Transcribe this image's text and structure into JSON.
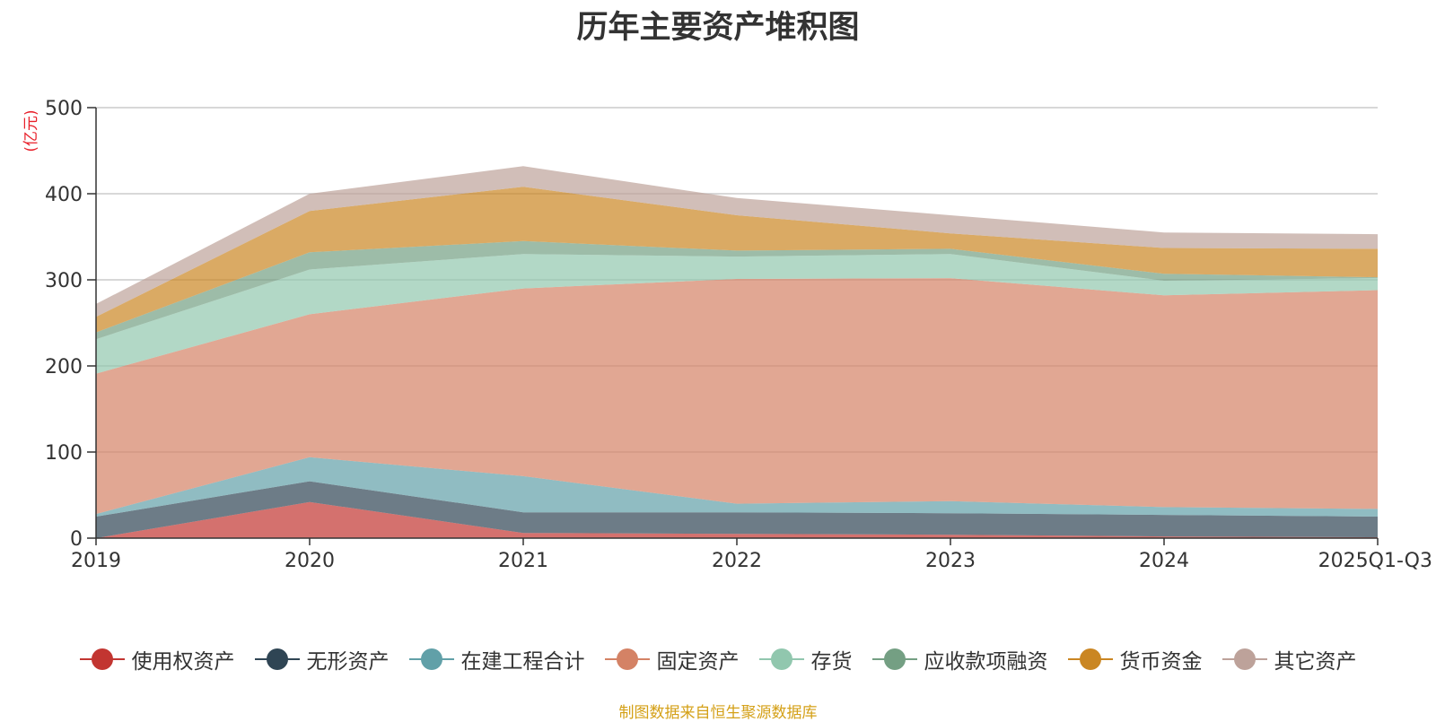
{
  "chart_data": {
    "type": "area",
    "stacked": true,
    "title": "历年主要资产堆积图",
    "ylabel": "(亿元)",
    "xlabel": "",
    "categories": [
      "2019",
      "2020",
      "2021",
      "2022",
      "2023",
      "2024",
      "2025Q1-Q3"
    ],
    "ylim": [
      0,
      500
    ],
    "yticks": [
      0,
      100,
      200,
      300,
      400,
      500
    ],
    "grid": true,
    "legend_position": "bottom",
    "series": [
      {
        "name": "使用权资产",
        "color": "#c23531",
        "values": [
          0,
          42,
          6,
          5,
          4,
          2,
          1
        ]
      },
      {
        "name": "无形资产",
        "color": "#2f4554",
        "values": [
          25,
          24,
          24,
          25,
          25,
          25,
          24
        ]
      },
      {
        "name": "在建工程合计",
        "color": "#61a0a8",
        "values": [
          3,
          28,
          42,
          10,
          14,
          9,
          9
        ]
      },
      {
        "name": "固定资产",
        "color": "#d48265",
        "values": [
          163,
          166,
          218,
          261,
          259,
          246,
          254
        ]
      },
      {
        "name": "存货",
        "color": "#91c7ae",
        "values": [
          40,
          52,
          40,
          26,
          28,
          17,
          14
        ]
      },
      {
        "name": "应收款项融资",
        "color": "#749f83",
        "values": [
          8,
          20,
          15,
          7,
          6,
          8,
          1
        ]
      },
      {
        "name": "货币资金",
        "color": "#ca8622",
        "values": [
          18,
          48,
          63,
          41,
          18,
          30,
          33
        ]
      },
      {
        "name": "其它资产",
        "color": "#bda29a",
        "values": [
          15,
          20,
          24,
          20,
          21,
          18,
          17
        ]
      }
    ]
  },
  "source_note": "制图数据来自恒生聚源数据库"
}
